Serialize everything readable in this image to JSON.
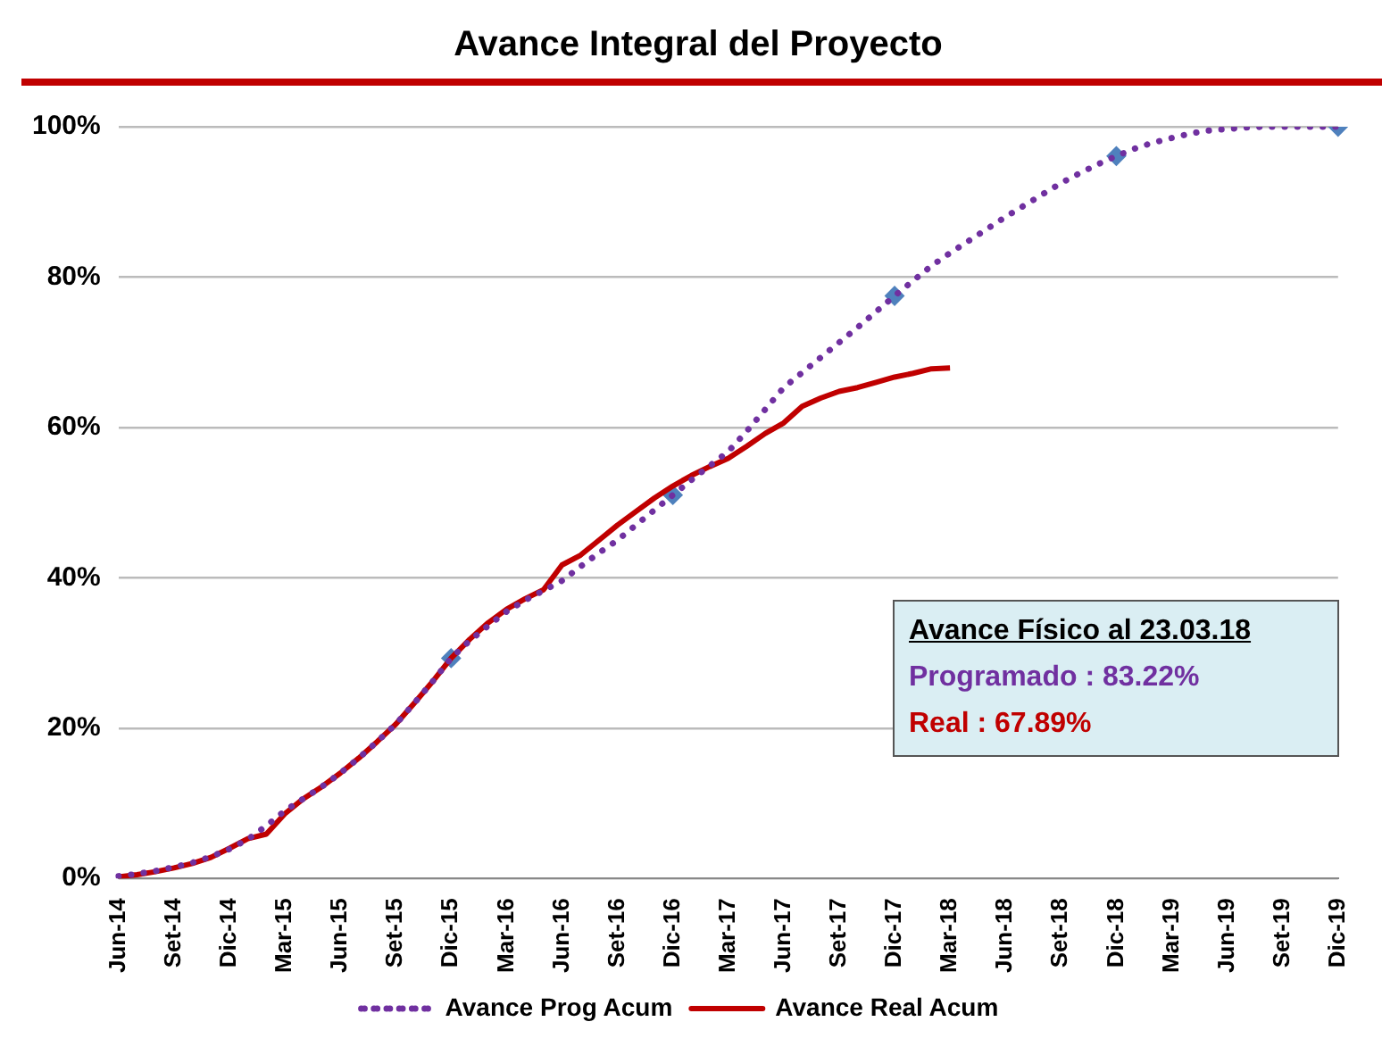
{
  "chart_data": {
    "type": "line",
    "title": "Avance Integral del Proyecto",
    "categories": [
      "Jun-14",
      null,
      null,
      "Set-14",
      null,
      null,
      "Dic-14",
      null,
      null,
      "Mar-15",
      null,
      null,
      "Jun-15",
      null,
      null,
      "Set-15",
      null,
      null,
      "Dic-15",
      null,
      null,
      "Mar-16",
      null,
      null,
      "Jun-16",
      null,
      null,
      "Set-16",
      null,
      null,
      "Dic-16",
      null,
      null,
      "Mar-17",
      null,
      null,
      "Jun-17",
      null,
      null,
      "Set-17",
      null,
      null,
      "Dic-17",
      null,
      null,
      "Mar-18",
      null,
      null,
      "Jun-18",
      null,
      null,
      "Set-18",
      null,
      null,
      "Dic-18",
      null,
      null,
      "Mar-19",
      null,
      null,
      "Jun-19",
      null,
      null,
      "Set-19",
      null,
      null,
      "Dic-19"
    ],
    "series": [
      {
        "name": "Avance Prog Acum",
        "color": "#7030a0",
        "line_style": "dotted",
        "marker": "none",
        "values": [
          0.3,
          0.6,
          1.0,
          1.5,
          2.1,
          2.9,
          3.9,
          5.2,
          7.0,
          9.0,
          10.6,
          12.2,
          14.0,
          16.0,
          18.2,
          20.5,
          23.3,
          26.2,
          29.3,
          31.6,
          33.6,
          35.5,
          37.0,
          38.3,
          39.6,
          41.5,
          43.3,
          45.0,
          47.0,
          49.0,
          51.0,
          53.0,
          54.9,
          56.8,
          59.5,
          62.4,
          65.3,
          67.3,
          69.3,
          71.3,
          73.3,
          75.4,
          77.5,
          79.5,
          81.5,
          83.2,
          84.8,
          86.4,
          88.0,
          89.5,
          91.0,
          92.5,
          93.8,
          95.0,
          96.1,
          97.1,
          97.9,
          98.5,
          99.1,
          99.5,
          99.7,
          99.9,
          100,
          100,
          100,
          100,
          100
        ]
      },
      {
        "name": "Avance Real Acum",
        "color": "#c00000",
        "line_style": "solid",
        "marker": "none",
        "values": [
          0.2,
          0.5,
          0.9,
          1.4,
          2.0,
          2.8,
          4.0,
          5.3,
          5.9,
          8.6,
          10.6,
          12.2,
          14.0,
          16.0,
          18.2,
          20.5,
          23.3,
          26.2,
          29.3,
          31.8,
          34.0,
          35.8,
          37.2,
          38.4,
          41.7,
          43.0,
          45.0,
          47.0,
          48.8,
          50.6,
          52.2,
          53.6,
          54.8,
          55.9,
          57.5,
          59.2,
          60.6,
          62.8,
          63.9,
          64.8,
          65.3,
          66.0,
          66.7,
          67.2,
          67.8,
          67.9,
          null,
          null,
          null,
          null,
          null,
          null,
          null,
          null,
          null,
          null,
          null,
          null,
          null,
          null,
          null,
          null,
          null,
          null,
          null,
          null,
          null
        ]
      },
      {
        "type": "scatter",
        "color": "#4f81bd",
        "marker": "diamond",
        "x": [
          "Dic-15",
          "Dic-16",
          "Dic-17",
          "Dic-18",
          "Dic-19"
        ],
        "values": [
          29.3,
          51.0,
          77.5,
          96.1,
          100
        ]
      }
    ],
    "ylim": [
      0,
      100
    ],
    "yticks": [
      {
        "value": 0,
        "label": "0%"
      },
      {
        "value": 20,
        "label": "20%"
      },
      {
        "value": 40,
        "label": "40%"
      },
      {
        "value": 60,
        "label": "60%"
      },
      {
        "value": 80,
        "label": "80%"
      },
      {
        "value": 100,
        "label": "100%"
      }
    ],
    "grid": "y",
    "legend": "bottom",
    "annotations": [
      "Avance Físico al 23.03.18",
      "Programado : 83.22%",
      "Real : 67.89%"
    ]
  }
}
